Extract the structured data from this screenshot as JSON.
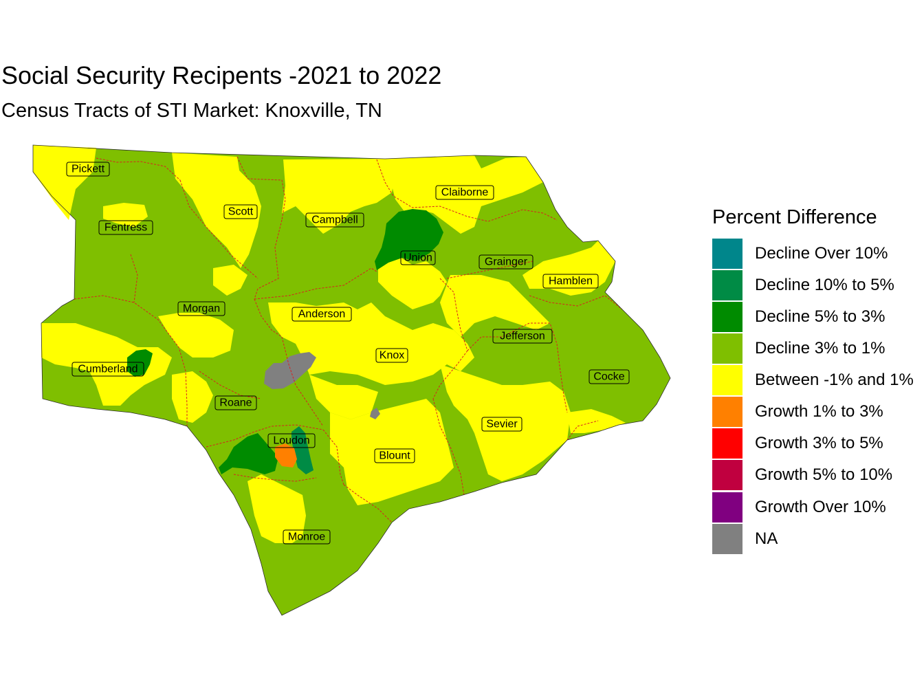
{
  "title": "Social Security Recipents -2021 to 2022",
  "subtitle": "Census Tracts of STI Market: Knoxville, TN",
  "legend": {
    "title": "Percent Difference",
    "items": [
      {
        "label": "Decline Over 10%",
        "color": "#00868B"
      },
      {
        "label": "Decline 10% to 5%",
        "color": "#008B45"
      },
      {
        "label": "Decline 5% to 3%",
        "color": "#008B00"
      },
      {
        "label": "Decline 3% to 1%",
        "color": "#7FBF00"
      },
      {
        "label": "Between -1% and 1%",
        "color": "#FFFF00"
      },
      {
        "label": "Growth 1% to 3%",
        "color": "#FF8000"
      },
      {
        "label": "Growth 3% to 5%",
        "color": "#FF0000"
      },
      {
        "label": "Growth 5% to 10%",
        "color": "#C0003F"
      },
      {
        "label": "Growth Over 10%",
        "color": "#800080"
      },
      {
        "label": "NA",
        "color": "#808080"
      }
    ]
  },
  "counties": [
    {
      "name": "Pickett"
    },
    {
      "name": "Scott"
    },
    {
      "name": "Campbell"
    },
    {
      "name": "Claiborne"
    },
    {
      "name": "Fentress"
    },
    {
      "name": "Union"
    },
    {
      "name": "Grainger"
    },
    {
      "name": "Hamblen"
    },
    {
      "name": "Morgan"
    },
    {
      "name": "Anderson"
    },
    {
      "name": "Jefferson"
    },
    {
      "name": "Knox"
    },
    {
      "name": "Cumberland"
    },
    {
      "name": "Cocke"
    },
    {
      "name": "Roane"
    },
    {
      "name": "Sevier"
    },
    {
      "name": "Loudon"
    },
    {
      "name": "Blount"
    },
    {
      "name": "Monroe"
    }
  ]
}
